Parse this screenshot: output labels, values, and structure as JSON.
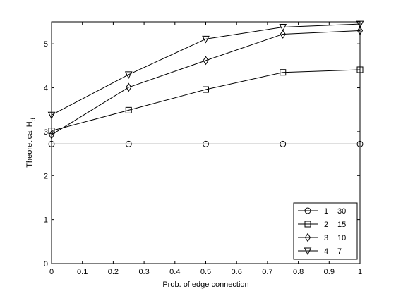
{
  "chart_data": {
    "type": "line",
    "xlabel": "Prob. of edge connection",
    "ylabel": "Theoretical H",
    "ylabel_subscript": "d",
    "xlim": [
      0,
      1
    ],
    "ylim": [
      0,
      5.5
    ],
    "xticks": [
      0,
      0.1,
      0.2,
      0.3,
      0.4,
      0.5,
      0.6,
      0.7,
      0.8,
      0.9,
      1
    ],
    "xtick_labels": [
      "0",
      "0.1",
      "0.2",
      "0.3",
      "0.4",
      "0.5",
      "0.6",
      "0.7",
      "0.8",
      "0.9",
      "1"
    ],
    "yticks": [
      0,
      1,
      2,
      3,
      4,
      5
    ],
    "ytick_labels": [
      "0",
      "1",
      "2",
      "3",
      "4",
      "5"
    ],
    "grid": false,
    "legend_position": "bottom-right",
    "line_color": "#000000",
    "x": [
      0,
      0.25,
      0.5,
      0.75,
      1
    ],
    "series": [
      {
        "name_a": "1",
        "name_b": "30",
        "marker": "circle",
        "values": [
          2.72,
          2.72,
          2.72,
          2.72,
          2.72
        ]
      },
      {
        "name_a": "2",
        "name_b": "15",
        "marker": "square",
        "values": [
          3.02,
          3.49,
          3.96,
          4.35,
          4.41
        ]
      },
      {
        "name_a": "3",
        "name_b": "10",
        "marker": "diamond",
        "values": [
          2.93,
          4.01,
          4.62,
          5.22,
          5.3
        ]
      },
      {
        "name_a": "4",
        "name_b": "7",
        "marker": "triangle-down",
        "values": [
          3.38,
          4.3,
          5.11,
          5.38,
          5.45
        ]
      }
    ]
  }
}
